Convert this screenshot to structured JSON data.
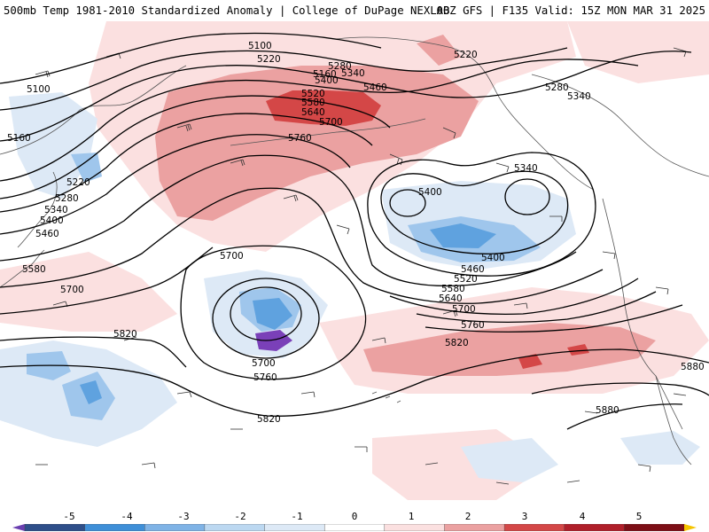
{
  "header": {
    "title_left": "500mb Temp 1981-2010 Standardized Anomaly | College of DuPage NEXLAB",
    "title_right": "00Z GFS | F135 Valid: 15Z MON MAR 31 2025"
  },
  "contour_labels": [
    "5100",
    "5160",
    "5220",
    "5280",
    "5340",
    "5400",
    "5460",
    "5520",
    "5580",
    "5640",
    "5700",
    "5760",
    "5820",
    "5880"
  ],
  "contour_label_instances": [
    "5100",
    "5160",
    "5220",
    "5280",
    "5340",
    "5400",
    "5460",
    "5520",
    "5580",
    "5640",
    "5700",
    "5760",
    "5100",
    "5160",
    "5220",
    "5280",
    "5340",
    "5400",
    "5460",
    "5580",
    "5700",
    "5220",
    "5280",
    "5340",
    "5340",
    "5400",
    "5400",
    "5460",
    "5520",
    "5580",
    "5640",
    "5700",
    "5760",
    "5820",
    "5700",
    "5700",
    "5760",
    "5820",
    "5820",
    "5880",
    "5880"
  ],
  "colorbar": {
    "labels": [
      "-5",
      "-4",
      "-3",
      "-2",
      "-1",
      "0",
      "1",
      "2",
      "3",
      "4",
      "5"
    ],
    "colors": [
      "#6a3fb0",
      "#2e4f8a",
      "#3f8fd8",
      "#7fb3e6",
      "#bcd8f1",
      "#dde9f6",
      "#ffffff",
      "#fbe0e0",
      "#eba1a1",
      "#d44747",
      "#b01f2a",
      "#7d0e16",
      "#f5c400"
    ]
  },
  "map_colors": {
    "positive_light": "#fbe0e0",
    "positive_mid": "#eba1a1",
    "positive_strong": "#d44747",
    "negative_light": "#dde9f6",
    "negative_mid": "#9fc6ec",
    "negative_strong": "#5fa2df",
    "negative_extreme": "#7a40b8",
    "coastline": "#555555"
  }
}
